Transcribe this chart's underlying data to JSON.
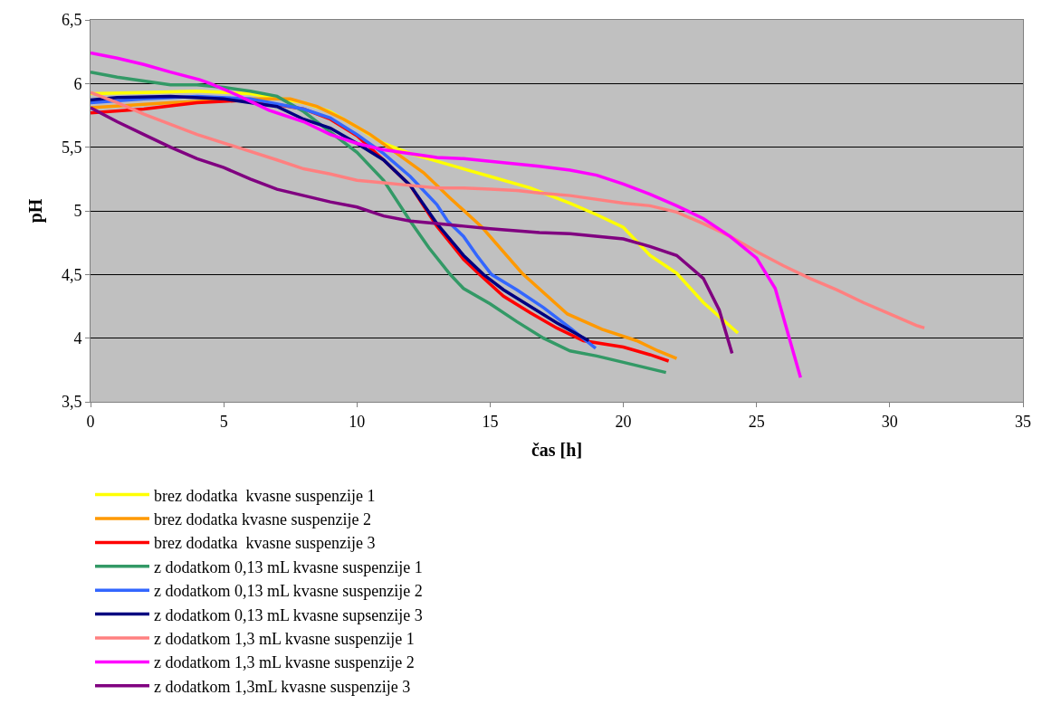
{
  "chart_data": {
    "type": "line",
    "xlabel": "čas [h]",
    "ylabel": "pH",
    "xlim": [
      0,
      35
    ],
    "xticks": [
      0,
      5,
      10,
      15,
      20,
      25,
      30,
      35
    ],
    "ylim": [
      3.5,
      6.5
    ],
    "yticks": [
      {
        "value": 3.5,
        "label": "3,5"
      },
      4,
      {
        "value": 4.5,
        "label": "4,5"
      },
      5,
      {
        "value": 5.5,
        "label": "5,5"
      },
      6,
      {
        "value": 6.5,
        "label": "6,5"
      }
    ],
    "grid": "y",
    "legend": "bottom",
    "marker": "none",
    "line_style": "solid",
    "series": [
      {
        "name": "brez dodatka  kvasne suspenzije 1",
        "color": "#ffff00",
        "x": [
          0,
          2,
          4,
          6,
          8,
          9,
          10,
          11,
          12,
          13,
          14,
          15,
          16.5,
          18,
          19,
          20,
          21,
          22,
          23,
          24.3
        ],
        "values": [
          5.92,
          5.93,
          5.94,
          5.92,
          5.85,
          5.78,
          5.66,
          5.53,
          5.45,
          5.39,
          5.33,
          5.27,
          5.18,
          5.06,
          4.97,
          4.87,
          4.65,
          4.51,
          4.28,
          4.04
        ]
      },
      {
        "name": "brez dodatka kvasne suspenzije 2",
        "color": "#ff9900",
        "x": [
          0,
          3,
          6,
          7.5,
          8.5,
          9.5,
          10.5,
          11.5,
          12.5,
          13.5,
          14.7,
          16.2,
          17.9,
          19.2,
          20.5,
          21.3,
          22
        ],
        "values": [
          5.81,
          5.85,
          5.88,
          5.88,
          5.82,
          5.72,
          5.6,
          5.45,
          5.3,
          5.1,
          4.87,
          4.51,
          4.19,
          4.07,
          3.98,
          3.9,
          3.84
        ]
      },
      {
        "name": "brez dodatka  kvasne suspenzije 3",
        "color": "#ff0000",
        "x": [
          0,
          2,
          4,
          6,
          8,
          9,
          10,
          11,
          12,
          13,
          14,
          14.6,
          15.5,
          16.5,
          17.5,
          18.5,
          20,
          21,
          21.7
        ],
        "values": [
          5.77,
          5.8,
          5.85,
          5.87,
          5.8,
          5.72,
          5.59,
          5.4,
          5.2,
          4.88,
          4.62,
          4.5,
          4.33,
          4.2,
          4.08,
          3.98,
          3.93,
          3.87,
          3.82
        ]
      },
      {
        "name": "z dodatkom 0,13 mL kvasne suspenzije 1",
        "color": "#339966",
        "x": [
          0,
          1,
          2,
          3,
          4,
          5,
          6,
          7,
          8,
          9,
          10,
          11,
          12,
          12.7,
          13.5,
          14,
          15,
          16,
          17,
          18,
          19,
          20,
          21.6
        ],
        "values": [
          6.09,
          6.05,
          6.02,
          5.99,
          5.99,
          5.97,
          5.94,
          5.9,
          5.78,
          5.62,
          5.46,
          5.24,
          4.92,
          4.71,
          4.5,
          4.39,
          4.27,
          4.13,
          4.0,
          3.9,
          3.86,
          3.81,
          3.73
        ]
      },
      {
        "name": "z dodatkom 0,13 mL kvasne suspenzije 2",
        "color": "#3366ff",
        "x": [
          0,
          2,
          4,
          6,
          8,
          9,
          10,
          11,
          12,
          13,
          13.4,
          14,
          14.5,
          15.05,
          16,
          17,
          18,
          18.96
        ],
        "values": [
          5.85,
          5.88,
          5.9,
          5.88,
          5.8,
          5.73,
          5.6,
          5.45,
          5.27,
          5.05,
          4.92,
          4.8,
          4.65,
          4.5,
          4.38,
          4.24,
          4.08,
          3.92
        ]
      },
      {
        "name": "z dodatkom 0,13 mL kvasne supsenzije 3",
        "color": "#000080",
        "x": [
          0,
          1,
          3,
          5,
          7,
          8,
          9,
          10,
          11,
          12,
          13,
          14,
          14.75,
          15.5,
          16.5,
          17.5,
          18.7
        ],
        "values": [
          5.87,
          5.89,
          5.9,
          5.88,
          5.82,
          5.72,
          5.65,
          5.53,
          5.4,
          5.2,
          4.9,
          4.65,
          4.5,
          4.38,
          4.25,
          4.12,
          3.98
        ]
      },
      {
        "name": "z dodatkom 1,3 mL kvasne suspenzije 1",
        "color": "#ff8080",
        "x": [
          0,
          1,
          2,
          3,
          4,
          5.5,
          7,
          8,
          9,
          10,
          11,
          12,
          13,
          14,
          15,
          16,
          16.85,
          18,
          20,
          21,
          22,
          23,
          24,
          25,
          26,
          27,
          28,
          29,
          30,
          31,
          31.3
        ],
        "values": [
          5.93,
          5.85,
          5.76,
          5.68,
          5.6,
          5.5,
          5.4,
          5.33,
          5.29,
          5.24,
          5.22,
          5.2,
          5.18,
          5.18,
          5.17,
          5.16,
          5.14,
          5.12,
          5.06,
          5.04,
          4.99,
          4.9,
          4.8,
          4.68,
          4.57,
          4.47,
          4.38,
          4.28,
          4.19,
          4.1,
          4.08
        ]
      },
      {
        "name": "z dodatkom 1,3 mL kvasne suspenzije 2",
        "color": "#ff00ff",
        "x": [
          0,
          1,
          2,
          3,
          4.1,
          4.5,
          5.5,
          6.7,
          8,
          9,
          10,
          11,
          12,
          13,
          14,
          15,
          16.85,
          18,
          19,
          20,
          21,
          22,
          23,
          24,
          25,
          25.7,
          26.2,
          26.65
        ],
        "values": [
          6.24,
          6.2,
          6.15,
          6.09,
          6.03,
          6.0,
          5.91,
          5.79,
          5.7,
          5.6,
          5.53,
          5.48,
          5.45,
          5.42,
          5.41,
          5.39,
          5.35,
          5.32,
          5.28,
          5.21,
          5.13,
          5.04,
          4.94,
          4.8,
          4.63,
          4.39,
          4.02,
          3.69
        ]
      },
      {
        "name": "z dodatkom 1,3mL kvasne suspenzije 3",
        "color": "#800080",
        "x": [
          0,
          1,
          2,
          3,
          4,
          5,
          6,
          7,
          8,
          9,
          10,
          11,
          12,
          13,
          14,
          15,
          16.85,
          18,
          20,
          21,
          22,
          23,
          23.6,
          24.08
        ],
        "values": [
          5.81,
          5.7,
          5.6,
          5.5,
          5.41,
          5.34,
          5.25,
          5.17,
          5.12,
          5.07,
          5.03,
          4.96,
          4.92,
          4.9,
          4.88,
          4.86,
          4.83,
          4.82,
          4.78,
          4.72,
          4.65,
          4.47,
          4.22,
          3.88
        ]
      }
    ]
  }
}
